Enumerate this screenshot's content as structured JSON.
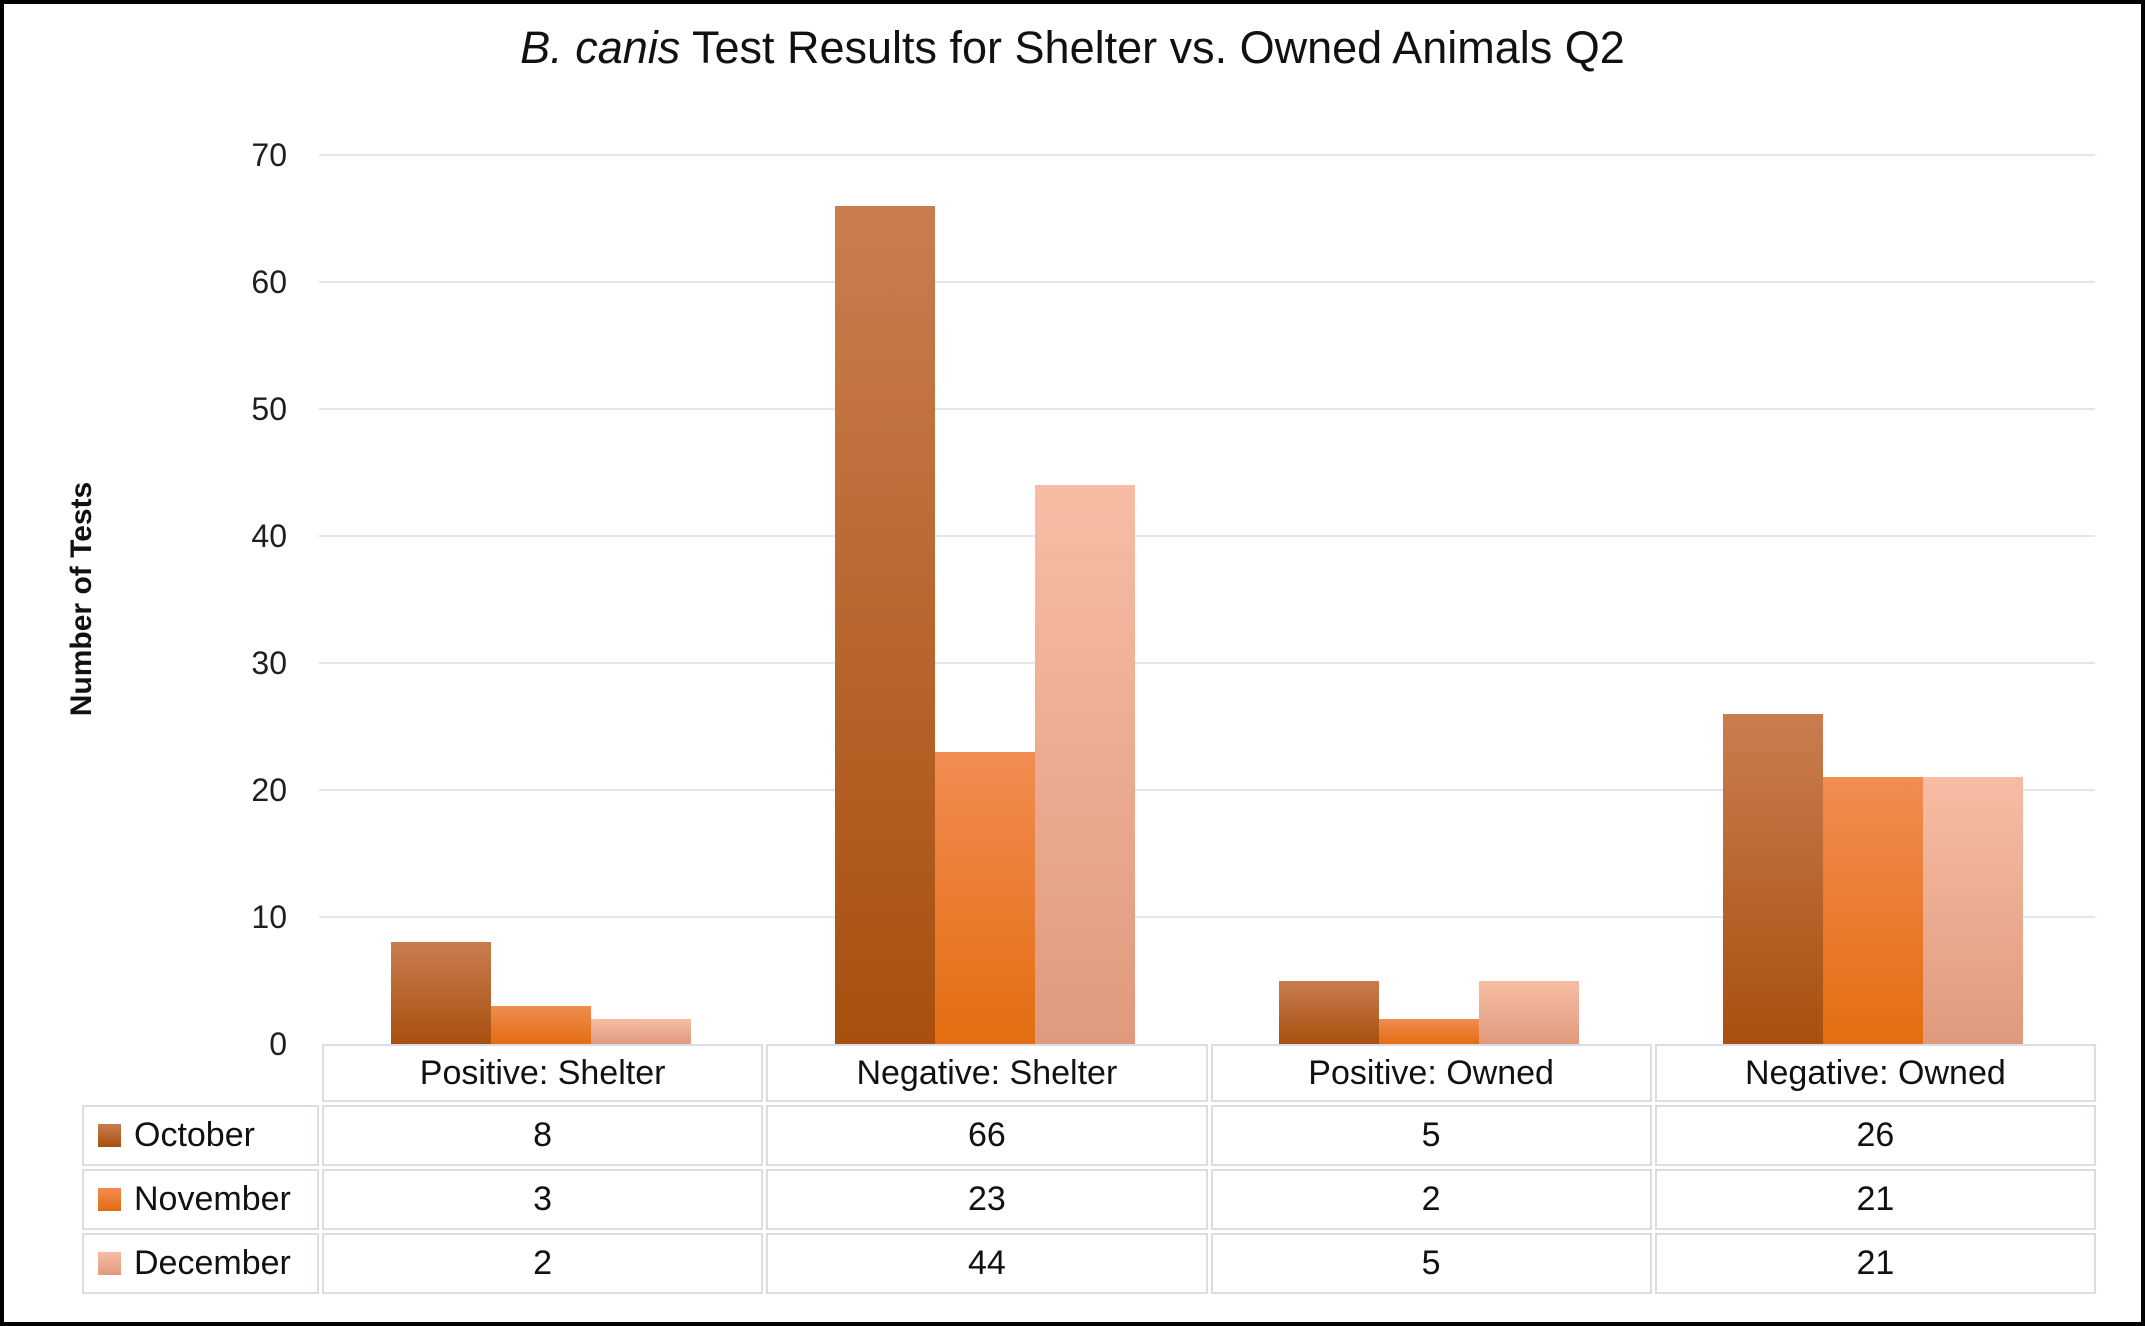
{
  "chart": {
    "title_italic": "B. canis",
    "title_rest": " Test Results for Shelter vs. Owned Animals Q2",
    "y_axis_label": "Number of Tests"
  },
  "colors": {
    "october_gradient_top": "#C97D4F",
    "october_gradient_bottom": "#A7500F",
    "november_gradient_top": "#F28C52",
    "november_gradient_bottom": "#E36D10",
    "december_gradient_top": "#F7BDA4",
    "december_gradient_bottom": "#E09A7D",
    "gridline": "#E1E5ED",
    "table_border": "#D9DDE6",
    "frame_border": "#000000"
  },
  "chart_data": {
    "type": "bar",
    "title": "B. canis Test Results for Shelter vs. Owned Animals Q2",
    "title_style": "leading 'B. canis' in italics",
    "xlabel": "",
    "ylabel": "Number of Tests",
    "ylim": [
      0,
      70
    ],
    "yticks": [
      0,
      10,
      20,
      30,
      40,
      50,
      60,
      70
    ],
    "grid": true,
    "legend_position": "data-table-left-column",
    "categories": [
      "Positive: Shelter",
      "Negative: Shelter",
      "Positive: Owned",
      "Negative: Owned"
    ],
    "series": [
      {
        "name": "October",
        "values": [
          8,
          66,
          5,
          26
        ]
      },
      {
        "name": "November",
        "values": [
          3,
          23,
          2,
          21
        ]
      },
      {
        "name": "December",
        "values": [
          2,
          44,
          5,
          21
        ]
      }
    ]
  }
}
